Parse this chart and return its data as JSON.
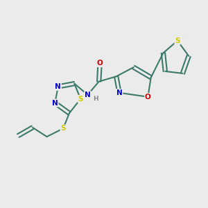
{
  "bg_color": "#EBEBEB",
  "bond_color": "#3A7A6A",
  "atom_colors": {
    "S": "#CCCC00",
    "N": "#0000CC",
    "O": "#CC0000",
    "H": "#888888"
  }
}
